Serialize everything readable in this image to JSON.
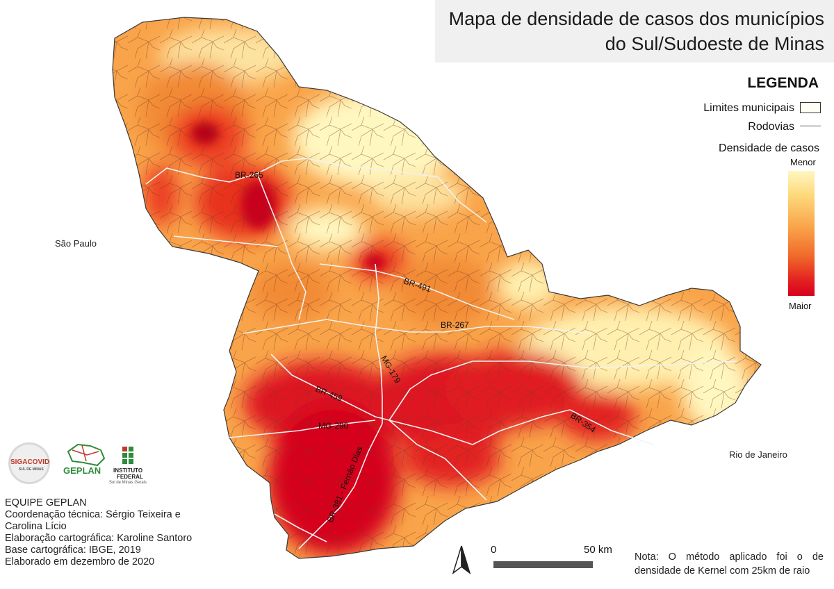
{
  "title": {
    "line1": "Mapa de densidade de casos dos municípios",
    "line2": "do Sul/Sudoeste de Minas"
  },
  "legend": {
    "heading": "LEGENDA",
    "boundaries_label": "Limites municipais",
    "roads_label": "Rodovias",
    "density_title": "Densidade de casos",
    "ramp_low": "Menor",
    "ramp_high": "Maior",
    "ramp_colors": [
      "#fff7c0",
      "#fdd87a",
      "#f9a44a",
      "#f06a2a",
      "#e32020",
      "#d6001c"
    ]
  },
  "neighbors": {
    "west": "São Paulo",
    "east": "Rio de Janeiro"
  },
  "roads": [
    "BR-265",
    "BR-491",
    "BR-267",
    "MG-179",
    "BR-459",
    "MG-290",
    "BR-354",
    "BR-381 - Fernão Dias"
  ],
  "scale": {
    "start": "0",
    "end": "50 km"
  },
  "credits": [
    "EQUIPE GEPLAN",
    "Coordenação técnica: Sérgio Teixeira e",
    "Carolina Lício",
    "Elaboração cartográfica: Karoline Santoro",
    "Base cartográfica: IBGE, 2019",
    "Elaborado em dezembro de 2020"
  ],
  "note": "Nota: O método aplicado foi o de densidade de Kernel com 25km de raio",
  "logos": {
    "sigacovid": {
      "text": "SIGACOVID",
      "sub": "SUL DE MINAS"
    },
    "geplan": {
      "text": "GEPLAN"
    },
    "ifsuldeminas": {
      "line1": "INSTITUTO",
      "line2": "FEDERAL",
      "line3": "Sul de Minas Gerais"
    }
  },
  "colors": {
    "title_bg": "#f0f0f0",
    "low": "#fff7c0",
    "mid": "#f9a44a",
    "high": "#d6001c"
  }
}
